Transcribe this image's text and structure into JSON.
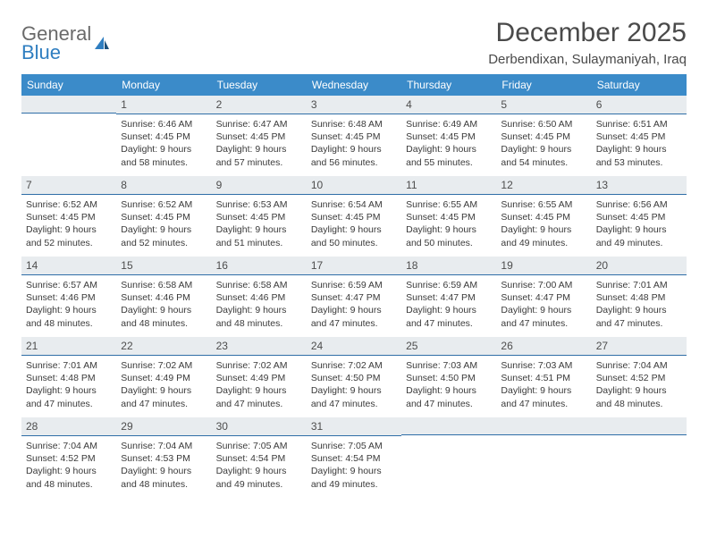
{
  "brand": {
    "general": "General",
    "blue": "Blue",
    "general_color": "#6a6a6a",
    "blue_color": "#2f7ec0"
  },
  "title": "December 2025",
  "location": "Derbendixan, Sulaymaniyah, Iraq",
  "header_bg": "#3b8bc9",
  "header_fg": "#ffffff",
  "daybar_bg": "#e8ecef",
  "daybar_rule": "#2f6ea7",
  "text_color": "#3a3a3a",
  "weekdays": [
    "Sunday",
    "Monday",
    "Tuesday",
    "Wednesday",
    "Thursday",
    "Friday",
    "Saturday"
  ],
  "first_weekday_index": 1,
  "days": [
    {
      "n": 1,
      "sunrise": "6:46 AM",
      "sunset": "4:45 PM",
      "daylight": "9 hours and 58 minutes."
    },
    {
      "n": 2,
      "sunrise": "6:47 AM",
      "sunset": "4:45 PM",
      "daylight": "9 hours and 57 minutes."
    },
    {
      "n": 3,
      "sunrise": "6:48 AM",
      "sunset": "4:45 PM",
      "daylight": "9 hours and 56 minutes."
    },
    {
      "n": 4,
      "sunrise": "6:49 AM",
      "sunset": "4:45 PM",
      "daylight": "9 hours and 55 minutes."
    },
    {
      "n": 5,
      "sunrise": "6:50 AM",
      "sunset": "4:45 PM",
      "daylight": "9 hours and 54 minutes."
    },
    {
      "n": 6,
      "sunrise": "6:51 AM",
      "sunset": "4:45 PM",
      "daylight": "9 hours and 53 minutes."
    },
    {
      "n": 7,
      "sunrise": "6:52 AM",
      "sunset": "4:45 PM",
      "daylight": "9 hours and 52 minutes."
    },
    {
      "n": 8,
      "sunrise": "6:52 AM",
      "sunset": "4:45 PM",
      "daylight": "9 hours and 52 minutes."
    },
    {
      "n": 9,
      "sunrise": "6:53 AM",
      "sunset": "4:45 PM",
      "daylight": "9 hours and 51 minutes."
    },
    {
      "n": 10,
      "sunrise": "6:54 AM",
      "sunset": "4:45 PM",
      "daylight": "9 hours and 50 minutes."
    },
    {
      "n": 11,
      "sunrise": "6:55 AM",
      "sunset": "4:45 PM",
      "daylight": "9 hours and 50 minutes."
    },
    {
      "n": 12,
      "sunrise": "6:55 AM",
      "sunset": "4:45 PM",
      "daylight": "9 hours and 49 minutes."
    },
    {
      "n": 13,
      "sunrise": "6:56 AM",
      "sunset": "4:45 PM",
      "daylight": "9 hours and 49 minutes."
    },
    {
      "n": 14,
      "sunrise": "6:57 AM",
      "sunset": "4:46 PM",
      "daylight": "9 hours and 48 minutes."
    },
    {
      "n": 15,
      "sunrise": "6:58 AM",
      "sunset": "4:46 PM",
      "daylight": "9 hours and 48 minutes."
    },
    {
      "n": 16,
      "sunrise": "6:58 AM",
      "sunset": "4:46 PM",
      "daylight": "9 hours and 48 minutes."
    },
    {
      "n": 17,
      "sunrise": "6:59 AM",
      "sunset": "4:47 PM",
      "daylight": "9 hours and 47 minutes."
    },
    {
      "n": 18,
      "sunrise": "6:59 AM",
      "sunset": "4:47 PM",
      "daylight": "9 hours and 47 minutes."
    },
    {
      "n": 19,
      "sunrise": "7:00 AM",
      "sunset": "4:47 PM",
      "daylight": "9 hours and 47 minutes."
    },
    {
      "n": 20,
      "sunrise": "7:01 AM",
      "sunset": "4:48 PM",
      "daylight": "9 hours and 47 minutes."
    },
    {
      "n": 21,
      "sunrise": "7:01 AM",
      "sunset": "4:48 PM",
      "daylight": "9 hours and 47 minutes."
    },
    {
      "n": 22,
      "sunrise": "7:02 AM",
      "sunset": "4:49 PM",
      "daylight": "9 hours and 47 minutes."
    },
    {
      "n": 23,
      "sunrise": "7:02 AM",
      "sunset": "4:49 PM",
      "daylight": "9 hours and 47 minutes."
    },
    {
      "n": 24,
      "sunrise": "7:02 AM",
      "sunset": "4:50 PM",
      "daylight": "9 hours and 47 minutes."
    },
    {
      "n": 25,
      "sunrise": "7:03 AM",
      "sunset": "4:50 PM",
      "daylight": "9 hours and 47 minutes."
    },
    {
      "n": 26,
      "sunrise": "7:03 AM",
      "sunset": "4:51 PM",
      "daylight": "9 hours and 47 minutes."
    },
    {
      "n": 27,
      "sunrise": "7:04 AM",
      "sunset": "4:52 PM",
      "daylight": "9 hours and 48 minutes."
    },
    {
      "n": 28,
      "sunrise": "7:04 AM",
      "sunset": "4:52 PM",
      "daylight": "9 hours and 48 minutes."
    },
    {
      "n": 29,
      "sunrise": "7:04 AM",
      "sunset": "4:53 PM",
      "daylight": "9 hours and 48 minutes."
    },
    {
      "n": 30,
      "sunrise": "7:05 AM",
      "sunset": "4:54 PM",
      "daylight": "9 hours and 49 minutes."
    },
    {
      "n": 31,
      "sunrise": "7:05 AM",
      "sunset": "4:54 PM",
      "daylight": "9 hours and 49 minutes."
    }
  ],
  "labels": {
    "sunrise": "Sunrise:",
    "sunset": "Sunset:",
    "daylight": "Daylight:"
  }
}
